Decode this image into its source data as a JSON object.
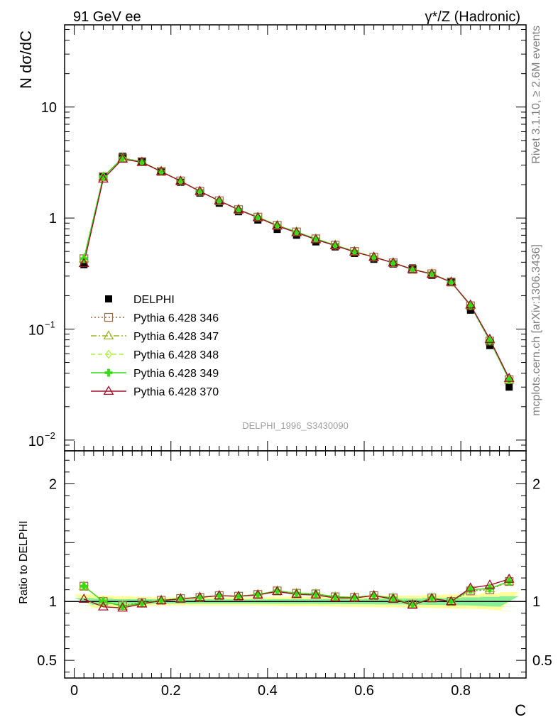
{
  "header": {
    "left_label": "91 GeV ee",
    "right_label": "γ*/Z (Hadronic)"
  },
  "side_text": {
    "rivet": "Rivet 3.1.10, ≥ 2.6M events",
    "mcplots": "mcplots.cern.ch [arXiv:1306.3436]"
  },
  "analysis_id": "DELPHI_1996_S3430090",
  "colors": {
    "data": "#000000",
    "p346": "#a0693c",
    "p347": "#9cb428",
    "p348": "#aaee3c",
    "p349": "#33dd11",
    "p370": "#a0102a",
    "band_yellow": "#ffff99",
    "band_green": "#88ee99"
  },
  "chart_data": [
    {
      "type": "scatter",
      "panel": "main",
      "xlabel": "C",
      "ylabel": "N dσ/dC",
      "yscale": "log",
      "ylim": [
        0.008,
        55
      ],
      "xlim": [
        -0.02,
        0.935
      ],
      "yticks": [
        {
          "value": 10,
          "label": "10"
        },
        {
          "value": 1,
          "label": "1"
        },
        {
          "value": 0.1,
          "label": "10",
          "sup": "−1"
        },
        {
          "value": 0.01,
          "label": "10",
          "sup": "−2"
        }
      ],
      "legend_position": "middle-left",
      "x": [
        0.02,
        0.06,
        0.1,
        0.14,
        0.18,
        0.22,
        0.26,
        0.3,
        0.34,
        0.38,
        0.42,
        0.46,
        0.5,
        0.54,
        0.58,
        0.62,
        0.66,
        0.7,
        0.74,
        0.78,
        0.82,
        0.86,
        0.9
      ],
      "series": [
        {
          "name": "DELPHI",
          "key": "data",
          "marker": "square-filled",
          "line": "none",
          "values": [
            0.38,
            2.35,
            3.6,
            3.25,
            2.6,
            2.1,
            1.68,
            1.36,
            1.14,
            0.96,
            0.79,
            0.7,
            0.61,
            0.55,
            0.48,
            0.425,
            0.385,
            0.355,
            0.305,
            0.265,
            0.148,
            0.071,
            0.03
          ]
        },
        {
          "name": "Pythia 6.428 346",
          "key": "p346",
          "marker": "square-open",
          "line": "dotted",
          "values": [
            0.43,
            2.36,
            3.48,
            3.22,
            2.63,
            2.16,
            1.74,
            1.43,
            1.19,
            1.02,
            0.86,
            0.75,
            0.65,
            0.57,
            0.5,
            0.445,
            0.395,
            0.345,
            0.315,
            0.265,
            0.162,
            0.078,
            0.035
          ]
        },
        {
          "name": "Pythia 6.428 347",
          "key": "p347",
          "marker": "triangle-open",
          "line": "dashdot",
          "values": [
            0.43,
            2.35,
            3.46,
            3.2,
            2.63,
            2.15,
            1.74,
            1.43,
            1.19,
            1.02,
            0.86,
            0.75,
            0.65,
            0.57,
            0.5,
            0.445,
            0.395,
            0.345,
            0.315,
            0.265,
            0.164,
            0.079,
            0.035
          ]
        },
        {
          "name": "Pythia 6.428 348",
          "key": "p348",
          "marker": "diamond-open",
          "line": "dashed",
          "values": [
            0.43,
            2.35,
            3.45,
            3.2,
            2.63,
            2.15,
            1.74,
            1.43,
            1.19,
            1.02,
            0.86,
            0.75,
            0.65,
            0.57,
            0.5,
            0.445,
            0.395,
            0.345,
            0.315,
            0.265,
            0.164,
            0.079,
            0.035
          ]
        },
        {
          "name": "Pythia 6.428 349",
          "key": "p349",
          "marker": "cross-filled",
          "line": "solid",
          "values": [
            0.43,
            2.36,
            3.47,
            3.2,
            2.63,
            2.15,
            1.74,
            1.43,
            1.19,
            1.02,
            0.86,
            0.75,
            0.65,
            0.57,
            0.5,
            0.445,
            0.395,
            0.345,
            0.315,
            0.265,
            0.163,
            0.079,
            0.035
          ]
        },
        {
          "name": "Pythia 6.428 370",
          "key": "p370",
          "marker": "triangle-open",
          "line": "solid",
          "values": [
            0.39,
            2.25,
            3.4,
            3.18,
            2.62,
            2.15,
            1.74,
            1.43,
            1.19,
            1.01,
            0.85,
            0.74,
            0.64,
            0.565,
            0.495,
            0.445,
            0.395,
            0.345,
            0.312,
            0.265,
            0.165,
            0.081,
            0.036
          ]
        }
      ]
    },
    {
      "type": "line",
      "panel": "ratio",
      "xlabel": "C",
      "ylabel": "Ratio to DELPHI",
      "ylim": [
        0.35,
        2.28
      ],
      "xlim": [
        -0.02,
        0.935
      ],
      "yticks": [
        {
          "value": 0.5,
          "label": "0.5"
        },
        {
          "value": 1,
          "label": "1"
        },
        {
          "value": 2,
          "label": "2"
        }
      ],
      "xticks": [
        {
          "value": 0,
          "label": "0"
        },
        {
          "value": 0.2,
          "label": "0.2"
        },
        {
          "value": 0.4,
          "label": "0.4"
        },
        {
          "value": 0.6,
          "label": "0.6"
        },
        {
          "value": 0.8,
          "label": "0.8"
        }
      ],
      "band_yellow_halfwidth": [
        0.06,
        0.05,
        0.045,
        0.04,
        0.035,
        0.035,
        0.035,
        0.035,
        0.035,
        0.035,
        0.04,
        0.04,
        0.04,
        0.045,
        0.045,
        0.05,
        0.05,
        0.05,
        0.055,
        0.06,
        0.06,
        0.07,
        0.08
      ],
      "band_green_halfwidth": [
        0.03,
        0.025,
        0.02,
        0.02,
        0.018,
        0.018,
        0.018,
        0.018,
        0.018,
        0.018,
        0.02,
        0.02,
        0.02,
        0.022,
        0.022,
        0.025,
        0.025,
        0.025,
        0.03,
        0.03,
        0.035,
        0.04,
        0.045
      ],
      "x": [
        0.02,
        0.06,
        0.1,
        0.14,
        0.18,
        0.22,
        0.26,
        0.3,
        0.34,
        0.38,
        0.42,
        0.46,
        0.5,
        0.54,
        0.58,
        0.62,
        0.66,
        0.7,
        0.74,
        0.78,
        0.82,
        0.86,
        0.9
      ],
      "series": [
        {
          "name": "Pythia 6.428 346",
          "key": "p346",
          "marker": "square-open",
          "line": "dotted",
          "values": [
            1.13,
            1.0,
            0.965,
            0.99,
            1.01,
            1.025,
            1.035,
            1.05,
            1.045,
            1.06,
            1.09,
            1.07,
            1.065,
            1.04,
            1.035,
            1.05,
            1.03,
            0.975,
            1.03,
            1.0,
            1.09,
            1.1,
            1.17
          ]
        },
        {
          "name": "Pythia 6.428 347",
          "key": "p347",
          "marker": "triangle-open",
          "line": "dashdot",
          "values": [
            1.13,
            1.0,
            0.96,
            0.985,
            1.01,
            1.025,
            1.035,
            1.05,
            1.045,
            1.06,
            1.09,
            1.07,
            1.065,
            1.04,
            1.035,
            1.05,
            1.03,
            0.975,
            1.03,
            1.0,
            1.1,
            1.11,
            1.17
          ]
        },
        {
          "name": "Pythia 6.428 348",
          "key": "p348",
          "marker": "diamond-open",
          "line": "dashed",
          "values": [
            1.13,
            1.0,
            0.958,
            0.985,
            1.01,
            1.025,
            1.035,
            1.05,
            1.045,
            1.06,
            1.09,
            1.07,
            1.065,
            1.04,
            1.035,
            1.05,
            1.03,
            0.975,
            1.03,
            1.0,
            1.1,
            1.11,
            1.17
          ]
        },
        {
          "name": "Pythia 6.428 349",
          "key": "p349",
          "marker": "cross-filled",
          "line": "solid",
          "values": [
            1.13,
            1.0,
            0.962,
            0.985,
            1.01,
            1.025,
            1.035,
            1.05,
            1.045,
            1.06,
            1.09,
            1.07,
            1.065,
            1.04,
            1.035,
            1.05,
            1.03,
            0.975,
            1.03,
            1.0,
            1.1,
            1.11,
            1.17
          ]
        },
        {
          "name": "Pythia 6.428 370",
          "key": "p370",
          "marker": "triangle-open",
          "line": "solid",
          "values": [
            1.02,
            0.955,
            0.945,
            0.98,
            1.008,
            1.022,
            1.035,
            1.05,
            1.044,
            1.055,
            1.085,
            1.06,
            1.055,
            1.03,
            1.03,
            1.05,
            1.02,
            0.97,
            1.025,
            1.0,
            1.115,
            1.14,
            1.19
          ]
        }
      ]
    }
  ]
}
